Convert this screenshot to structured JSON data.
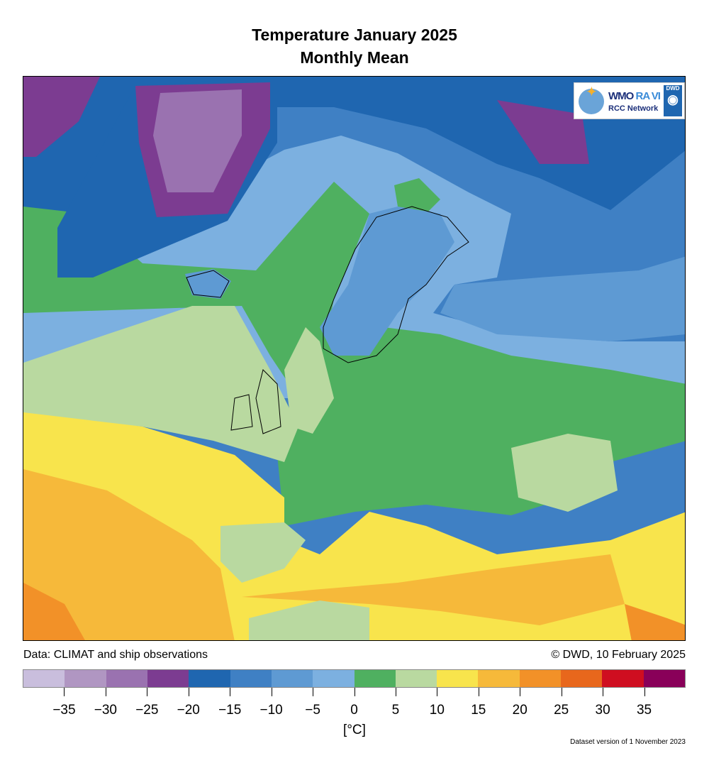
{
  "title_line1": "Temperature January 2025",
  "title_line2": "Monthly Mean",
  "data_source": "Data: CLIMAT and ship observations",
  "copyright": "© DWD, 10 February 2025",
  "unit_label": "[°C]",
  "dataset_version": "Dataset version of 1 November 2023",
  "logo": {
    "wmo": "WMO",
    "ravi": "RA VI",
    "network": "RCC Network",
    "dwd": "DWD"
  },
  "legend": {
    "ticks": [
      "−35",
      "−30",
      "−25",
      "−20",
      "−15",
      "−10",
      "−5",
      "0",
      "5",
      "10",
      "15",
      "20",
      "25",
      "30",
      "35"
    ],
    "colors": [
      "#c9bedd",
      "#b096c2",
      "#9a72b0",
      "#7c3c91",
      "#1f66b0",
      "#3f80c4",
      "#5e9ad3",
      "#7cb0e0",
      "#4fb060",
      "#b9d9a0",
      "#f8e44c",
      "#f6b93a",
      "#f29128",
      "#e8671c",
      "#cf0e20",
      "#890059"
    ]
  },
  "map_colors": {
    "purple_light": "#9a72b0",
    "purple": "#7c3c91",
    "blue_dark": "#1f66b0",
    "blue": "#3f80c4",
    "blue_mid": "#5e9ad3",
    "blue_light": "#7cb0e0",
    "green": "#4fb060",
    "green_light": "#b9d9a0",
    "yellow": "#f8e44c",
    "orange_light": "#f6b93a",
    "orange": "#f29128"
  }
}
